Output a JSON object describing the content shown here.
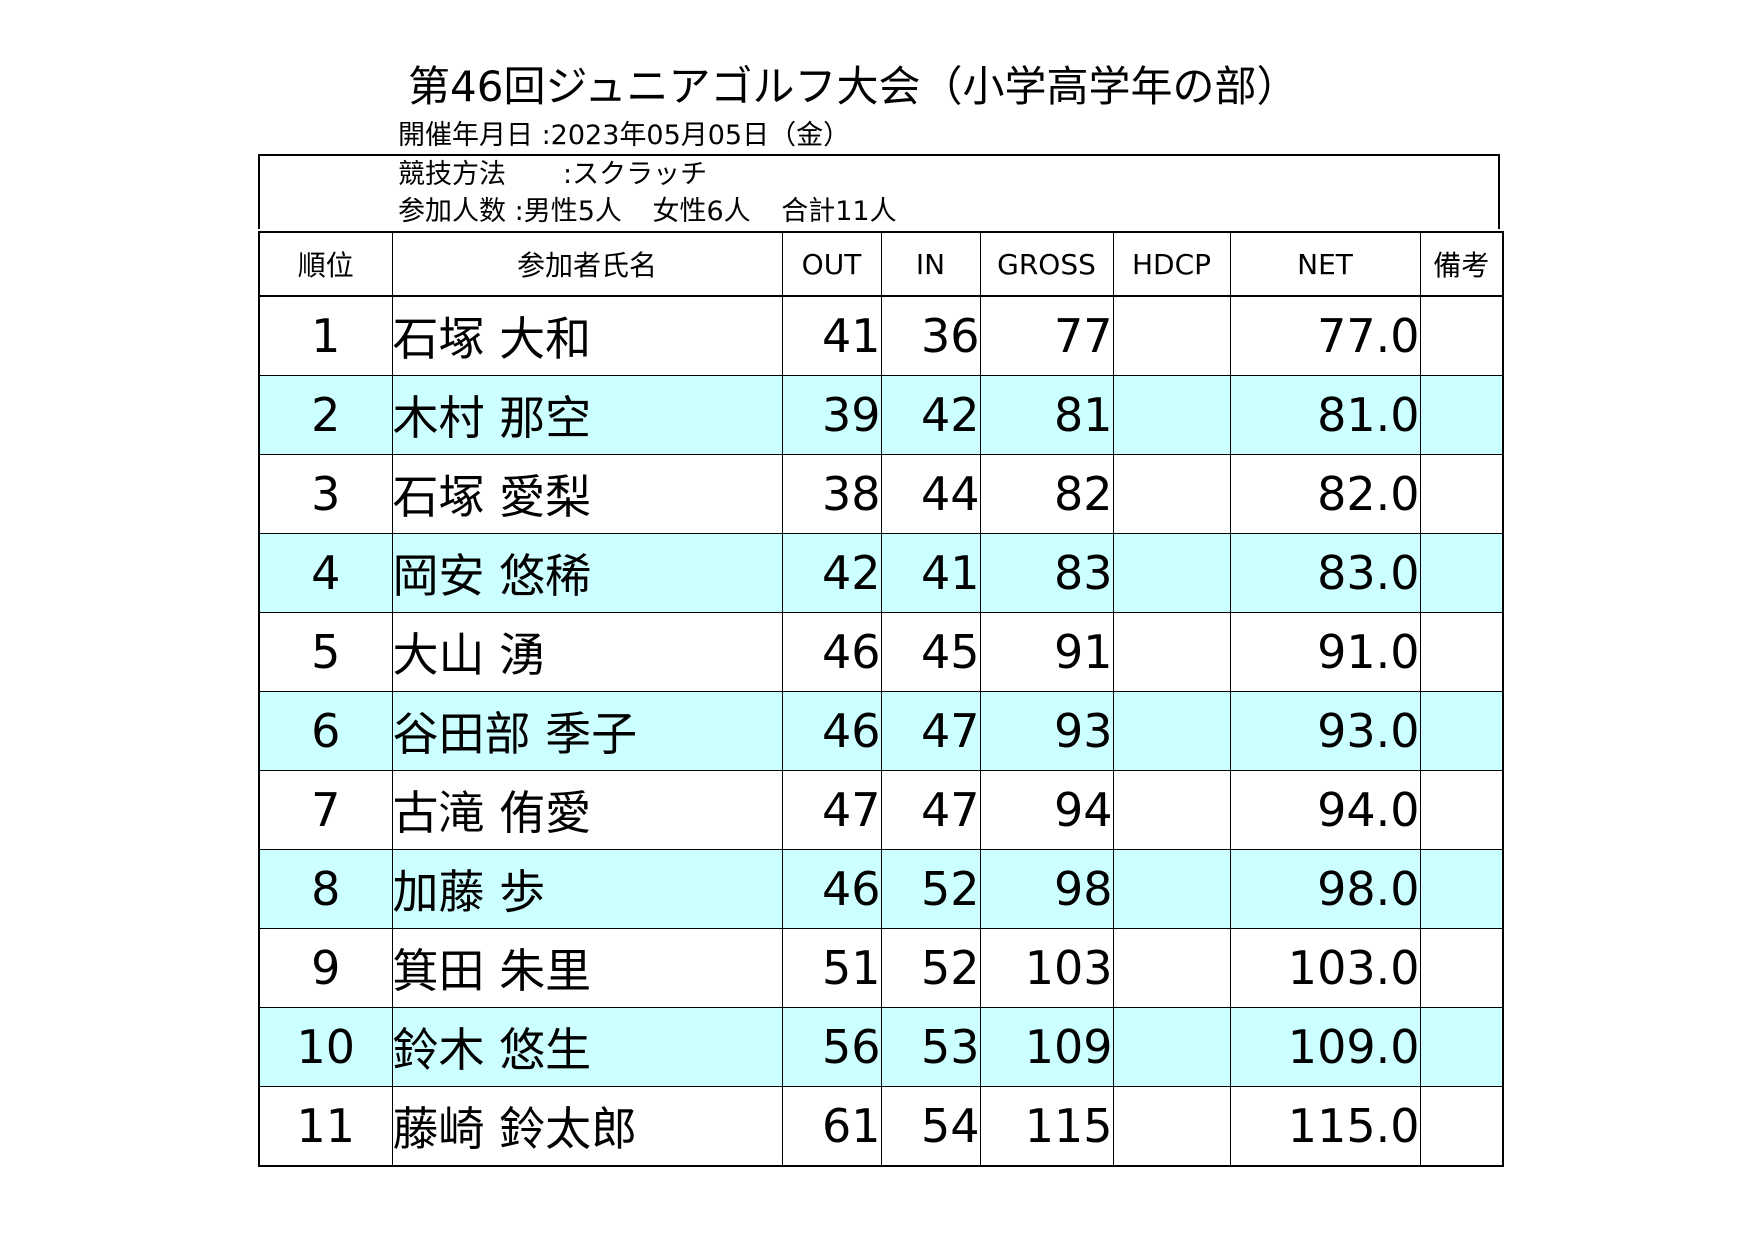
{
  "header": {
    "title": "第46回ジュニアゴルフ大会（小学高学年の部）",
    "date_line": "開催年月日 :2023年05月05日（金）",
    "method_label": "競技方法",
    "method_value": ":スクラッチ",
    "participants_label": "参加人数",
    "participants_male": ":男性5人",
    "participants_female": "女性6人",
    "participants_total": "合計11人"
  },
  "columns": {
    "rank": "順位",
    "name": "参加者氏名",
    "out": "OUT",
    "in": "IN",
    "gross": "GROSS",
    "hdcp": "HDCP",
    "net": "NET",
    "note": "備考"
  },
  "rows": [
    {
      "rank": "1",
      "name": "石塚 大和",
      "out": "41",
      "in": "36",
      "gross": "77",
      "hdcp": "",
      "net": "77.0",
      "note": ""
    },
    {
      "rank": "2",
      "name": "木村 那空",
      "out": "39",
      "in": "42",
      "gross": "81",
      "hdcp": "",
      "net": "81.0",
      "note": ""
    },
    {
      "rank": "3",
      "name": "石塚 愛梨",
      "out": "38",
      "in": "44",
      "gross": "82",
      "hdcp": "",
      "net": "82.0",
      "note": ""
    },
    {
      "rank": "4",
      "name": "岡安 悠稀",
      "out": "42",
      "in": "41",
      "gross": "83",
      "hdcp": "",
      "net": "83.0",
      "note": ""
    },
    {
      "rank": "5",
      "name": "大山 湧",
      "out": "46",
      "in": "45",
      "gross": "91",
      "hdcp": "",
      "net": "91.0",
      "note": ""
    },
    {
      "rank": "6",
      "name": "谷田部 季子",
      "out": "46",
      "in": "47",
      "gross": "93",
      "hdcp": "",
      "net": "93.0",
      "note": ""
    },
    {
      "rank": "7",
      "name": "古滝 侑愛",
      "out": "47",
      "in": "47",
      "gross": "94",
      "hdcp": "",
      "net": "94.0",
      "note": ""
    },
    {
      "rank": "8",
      "name": "加藤 歩",
      "out": "46",
      "in": "52",
      "gross": "98",
      "hdcp": "",
      "net": "98.0",
      "note": ""
    },
    {
      "rank": "9",
      "name": "箕田 朱里",
      "out": "51",
      "in": "52",
      "gross": "103",
      "hdcp": "",
      "net": "103.0",
      "note": ""
    },
    {
      "rank": "10",
      "name": "鈴木 悠生",
      "out": "56",
      "in": "53",
      "gross": "109",
      "hdcp": "",
      "net": "109.0",
      "note": ""
    },
    {
      "rank": "11",
      "name": "藤崎 鈴太郎",
      "out": "61",
      "in": "54",
      "gross": "115",
      "hdcp": "",
      "net": "115.0",
      "note": ""
    }
  ],
  "colors": {
    "alt_row_bg": "#ccffff",
    "border": "#000000"
  }
}
